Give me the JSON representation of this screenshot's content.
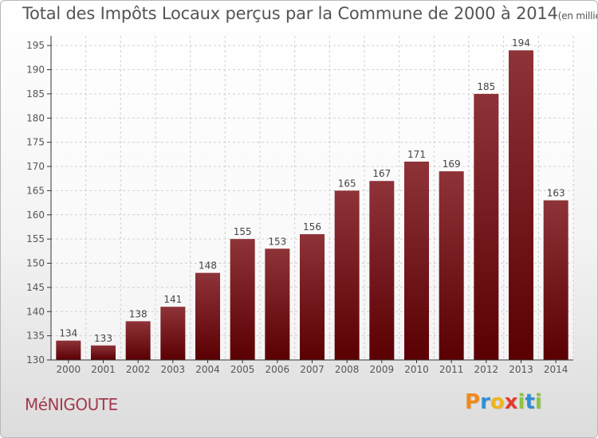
{
  "title": "Total des Impôts Locaux perçus par la Commune de 2000 à 2014",
  "title_unit": "(en milliers d'€)",
  "commune": "MéNIGOUTE",
  "logo": {
    "letters": [
      "P",
      "r",
      "o",
      "x",
      "i",
      "t",
      "i"
    ],
    "colors": [
      "#f08a1c",
      "#2f8fd6",
      "#f0b41c",
      "#e23b2e",
      "#8bc43f",
      "#2f8fd6",
      "#8bc43f"
    ]
  },
  "colors": {
    "bar_top": "#8e3338",
    "bar_bottom": "#5a0003",
    "axis_text": "#555555",
    "grid": "#d0d0d0"
  },
  "chart_data": {
    "type": "bar",
    "title": "Total des Impôts Locaux perçus par la Commune de 2000 à 2014",
    "xlabel": "",
    "ylabel": "",
    "categories": [
      "2000",
      "2001",
      "2002",
      "2003",
      "2004",
      "2005",
      "2006",
      "2007",
      "2008",
      "2009",
      "2010",
      "2011",
      "2012",
      "2013",
      "2014"
    ],
    "values": [
      134,
      133,
      138,
      141,
      148,
      155,
      153,
      156,
      165,
      167,
      171,
      169,
      185,
      194,
      163
    ],
    "ylim": [
      130,
      197
    ],
    "yticks": [
      130,
      135,
      140,
      145,
      150,
      155,
      160,
      165,
      170,
      175,
      180,
      185,
      190,
      195
    ],
    "grid": true
  }
}
